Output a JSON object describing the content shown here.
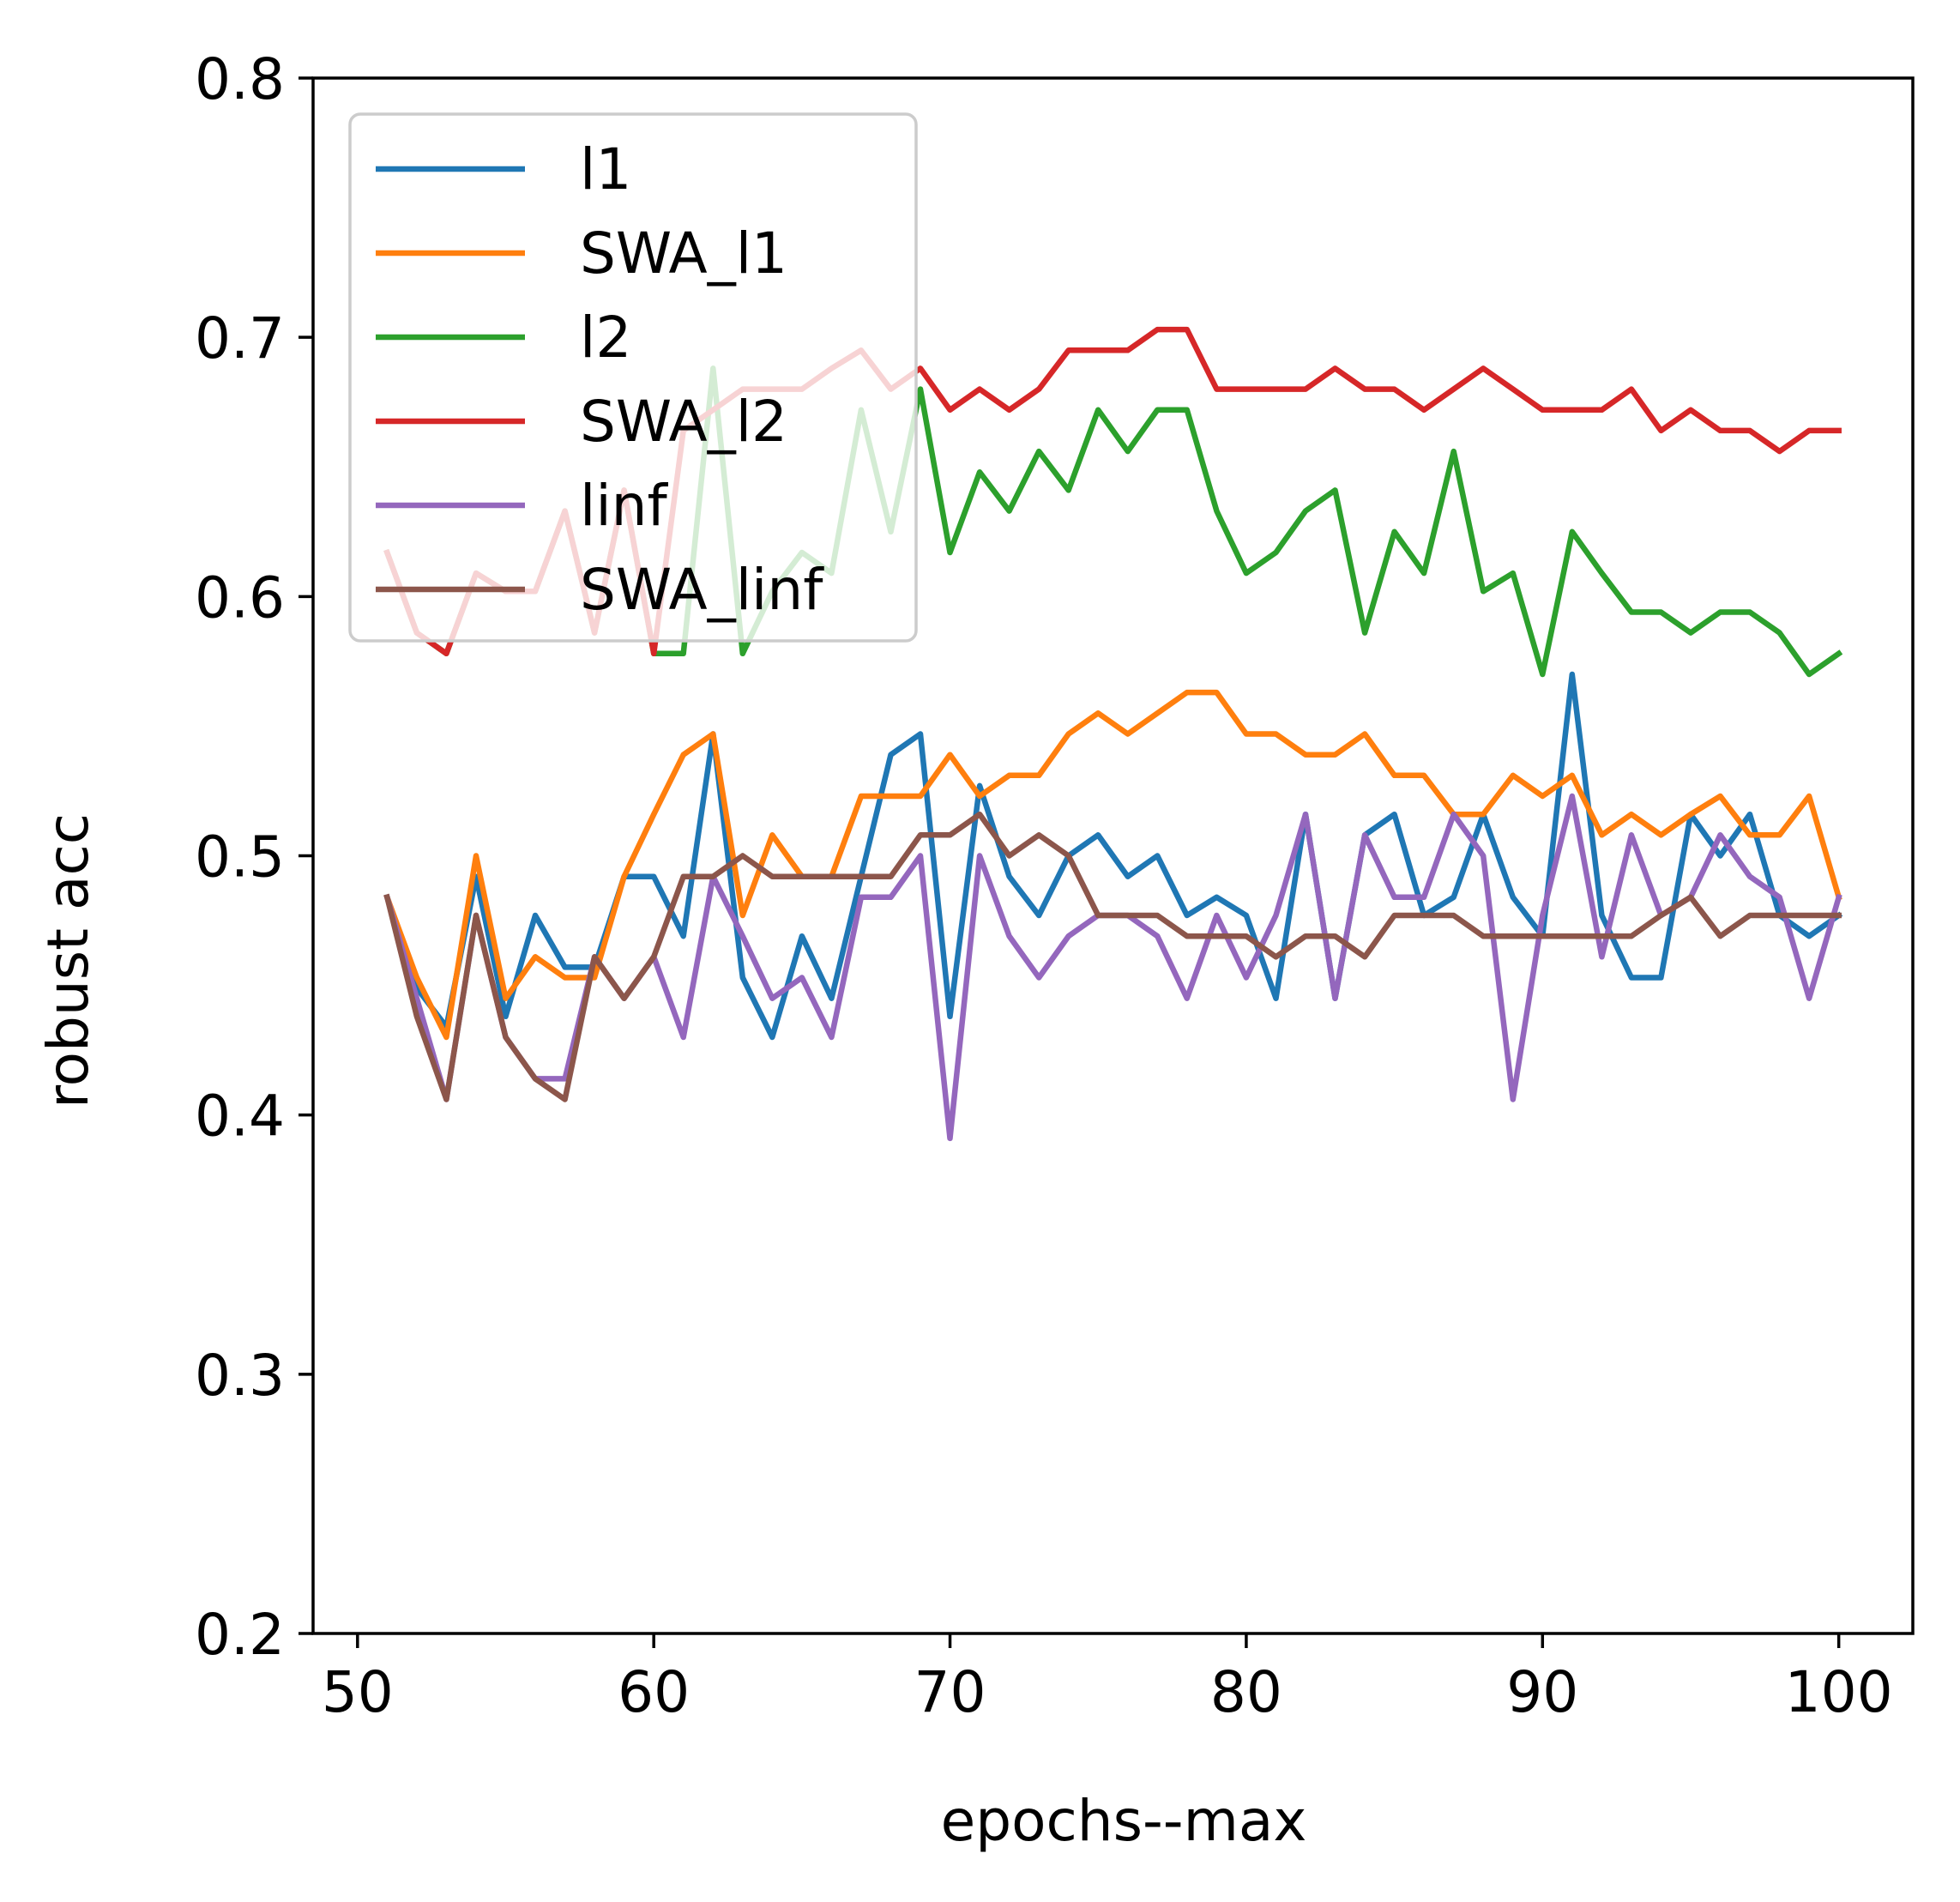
{
  "chart_data": {
    "type": "line",
    "xlabel": "epochs--max",
    "ylabel": "robust acc",
    "xlim": [
      48.5,
      102.5
    ],
    "ylim": [
      0.2,
      0.8
    ],
    "xticks": [
      50,
      60,
      70,
      80,
      90,
      100
    ],
    "yticks": [
      0.2,
      0.3,
      0.4,
      0.5,
      0.6,
      0.7,
      0.8
    ],
    "xtick_labels": [
      "50",
      "60",
      "70",
      "80",
      "90",
      "100"
    ],
    "ytick_labels": [
      "0.2",
      "0.3",
      "0.4",
      "0.5",
      "0.6",
      "0.7",
      "0.8"
    ],
    "legend_position": "upper-left",
    "grid": false,
    "x": [
      51,
      52,
      53,
      54,
      55,
      56,
      57,
      58,
      59,
      60,
      61,
      62,
      63,
      64,
      65,
      66,
      67,
      68,
      69,
      70,
      71,
      72,
      73,
      74,
      75,
      76,
      77,
      78,
      79,
      80,
      81,
      82,
      83,
      84,
      85,
      86,
      87,
      88,
      89,
      90,
      91,
      92,
      93,
      94,
      95,
      96,
      97,
      98,
      99,
      100
    ],
    "series": [
      {
        "name": "l1",
        "color": "#1f77b4",
        "values": [
          0.484,
          0.449,
          0.434,
          0.492,
          0.438,
          0.477,
          0.457,
          0.457,
          0.492,
          0.492,
          0.469,
          0.547,
          0.453,
          0.43,
          0.469,
          0.445,
          0.492,
          0.539,
          0.547,
          0.438,
          0.527,
          0.492,
          0.477,
          0.5,
          0.508,
          0.492,
          0.5,
          0.477,
          0.484,
          0.477,
          0.445,
          0.516,
          0.445,
          0.508,
          0.516,
          0.477,
          0.484,
          0.516,
          0.484,
          0.469,
          0.57,
          0.477,
          0.453,
          0.453,
          0.516,
          0.5,
          0.516,
          0.477,
          0.469,
          0.477
        ]
      },
      {
        "name": "SWA_l1",
        "color": "#ff7f0e",
        "values": [
          0.484,
          0.453,
          0.43,
          0.5,
          0.445,
          0.461,
          0.453,
          0.453,
          0.492,
          0.516,
          0.539,
          0.547,
          0.477,
          0.508,
          0.492,
          0.492,
          0.523,
          0.523,
          0.523,
          0.539,
          0.523,
          0.531,
          0.531,
          0.547,
          0.555,
          0.547,
          0.555,
          0.563,
          0.563,
          0.547,
          0.547,
          0.539,
          0.539,
          0.547,
          0.531,
          0.531,
          0.516,
          0.516,
          0.531,
          0.523,
          0.531,
          0.508,
          0.516,
          0.508,
          0.516,
          0.523,
          0.508,
          0.508,
          0.523,
          0.484
        ]
      },
      {
        "name": "l2",
        "color": "#2ca02c",
        "values": [
          0.617,
          0.586,
          0.578,
          0.609,
          0.602,
          0.602,
          0.633,
          0.586,
          0.641,
          0.578,
          0.578,
          0.688,
          0.578,
          0.602,
          0.617,
          0.609,
          0.672,
          0.625,
          0.68,
          0.617,
          0.648,
          0.633,
          0.656,
          0.641,
          0.672,
          0.656,
          0.672,
          0.672,
          0.633,
          0.609,
          0.617,
          0.633,
          0.641,
          0.586,
          0.625,
          0.609,
          0.656,
          0.602,
          0.609,
          0.57,
          0.625,
          0.609,
          0.594,
          0.594,
          0.586,
          0.594,
          0.594,
          0.586,
          0.57,
          0.578
        ]
      },
      {
        "name": "SWA_l2",
        "color": "#d62728",
        "values": [
          0.617,
          0.586,
          0.578,
          0.609,
          0.602,
          0.602,
          0.633,
          0.586,
          0.641,
          0.578,
          0.664,
          0.672,
          0.68,
          0.68,
          0.68,
          0.688,
          0.695,
          0.68,
          0.688,
          0.672,
          0.68,
          0.672,
          0.68,
          0.695,
          0.695,
          0.695,
          0.703,
          0.703,
          0.68,
          0.68,
          0.68,
          0.68,
          0.688,
          0.68,
          0.68,
          0.672,
          0.68,
          0.688,
          0.68,
          0.672,
          0.672,
          0.672,
          0.68,
          0.664,
          0.672,
          0.664,
          0.664,
          0.656,
          0.664,
          0.664
        ]
      },
      {
        "name": "linf",
        "color": "#9467bd",
        "values": [
          0.484,
          0.445,
          0.406,
          0.477,
          0.43,
          0.414,
          0.414,
          0.461,
          0.445,
          0.461,
          0.43,
          0.492,
          0.469,
          0.445,
          0.453,
          0.43,
          0.484,
          0.484,
          0.5,
          0.391,
          0.5,
          0.469,
          0.453,
          0.469,
          0.477,
          0.477,
          0.469,
          0.445,
          0.477,
          0.453,
          0.477,
          0.516,
          0.445,
          0.508,
          0.484,
          0.484,
          0.516,
          0.5,
          0.406,
          0.477,
          0.523,
          0.461,
          0.508,
          0.477,
          0.484,
          0.508,
          0.492,
          0.484,
          0.445,
          0.484
        ]
      },
      {
        "name": "SWA_linf",
        "color": "#8c564b",
        "values": [
          0.484,
          0.438,
          0.406,
          0.477,
          0.43,
          0.414,
          0.406,
          0.461,
          0.445,
          0.461,
          0.492,
          0.492,
          0.5,
          0.492,
          0.492,
          0.492,
          0.492,
          0.492,
          0.508,
          0.508,
          0.516,
          0.5,
          0.508,
          0.5,
          0.477,
          0.477,
          0.477,
          0.469,
          0.469,
          0.469,
          0.461,
          0.469,
          0.469,
          0.461,
          0.477,
          0.477,
          0.477,
          0.469,
          0.469,
          0.469,
          0.469,
          0.469,
          0.469,
          0.477,
          0.484,
          0.469,
          0.477,
          0.477,
          0.477,
          0.477
        ]
      }
    ]
  }
}
